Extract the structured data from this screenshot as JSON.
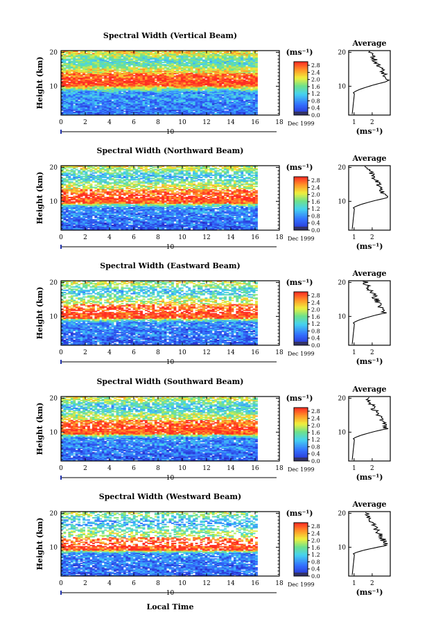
{
  "figure": {
    "xlabel": "Local Time",
    "date_label": "Dec 1999",
    "day_label": "10",
    "ylabel": "Height (km)",
    "colorbar_unit": "(ms⁻¹)",
    "average_title": "Average",
    "average_xlabel": "(ms⁻¹)"
  },
  "chart_data": [
    {
      "type": "heatmap",
      "title": "Spectral Width (Vertical Beam)",
      "xlabel": "Local Time",
      "ylabel": "Height (km)",
      "xlim": [
        0,
        18
      ],
      "xticks": [
        0,
        2,
        4,
        6,
        8,
        10,
        12,
        14,
        16,
        18
      ],
      "data_xrange": [
        0,
        16.2
      ],
      "ylim": [
        1.5,
        20.5
      ],
      "yticks": [
        10,
        20
      ],
      "colorbar": {
        "unit": "(ms⁻¹)",
        "ticks": [
          0.0,
          0.4,
          0.8,
          1.2,
          1.6,
          2.0,
          2.4,
          2.8
        ],
        "range": [
          0,
          3.0
        ]
      },
      "profile": {
        "title": "Average",
        "xlabel": "(ms⁻¹)",
        "xticks": [
          1,
          2
        ],
        "xlim": [
          0.7,
          3.0
        ],
        "ylim": [
          1.5,
          20.5
        ],
        "yticks": [
          10,
          20
        ],
        "peak_height": 11.5,
        "peak_value": 2.9
      },
      "layers": {
        "low_km": [
          2,
          8
        ],
        "low_value": 0.6,
        "peak_km": 11.5,
        "peak_value": 3.0,
        "upper_value": 1.8,
        "gap_fraction": 0.03
      }
    },
    {
      "type": "heatmap",
      "title": "Spectral Width (Northward Beam)",
      "xlabel": "Local Time",
      "ylabel": "Height (km)",
      "xlim": [
        0,
        18
      ],
      "xticks": [
        0,
        2,
        4,
        6,
        8,
        10,
        12,
        14,
        16,
        18
      ],
      "data_xrange": [
        0,
        16.2
      ],
      "ylim": [
        1.5,
        20.5
      ],
      "yticks": [
        10,
        20
      ],
      "colorbar": {
        "unit": "(ms⁻¹)",
        "ticks": [
          0.0,
          0.4,
          0.8,
          1.2,
          1.6,
          2.0,
          2.4,
          2.8
        ],
        "range": [
          0,
          3.0
        ]
      },
      "profile": {
        "title": "Average",
        "xlabel": "(ms⁻¹)",
        "xticks": [
          1,
          2
        ],
        "xlim": [
          0.7,
          3.0
        ],
        "ylim": [
          1.5,
          20.5
        ],
        "yticks": [
          10,
          20
        ],
        "peak_height": 11.0,
        "peak_value": 2.8
      },
      "layers": {
        "low_km": [
          2,
          8
        ],
        "low_value": 0.5,
        "peak_km": 11.0,
        "peak_value": 3.0,
        "upper_value": 1.6,
        "gap_fraction": 0.12
      }
    },
    {
      "type": "heatmap",
      "title": "Spectral Width (Eastward Beam)",
      "xlabel": "Local Time",
      "ylabel": "Height (km)",
      "xlim": [
        0,
        18
      ],
      "xticks": [
        0,
        2,
        4,
        6,
        8,
        10,
        12,
        14,
        16,
        18
      ],
      "data_xrange": [
        0,
        16.2
      ],
      "ylim": [
        1.5,
        20.5
      ],
      "yticks": [
        10,
        20
      ],
      "colorbar": {
        "unit": "(ms⁻¹)",
        "ticks": [
          0.0,
          0.4,
          0.8,
          1.2,
          1.6,
          2.0,
          2.4,
          2.8
        ],
        "range": [
          0,
          3.0
        ]
      },
      "profile": {
        "title": "Average",
        "xlabel": "(ms⁻¹)",
        "xticks": [
          1,
          2
        ],
        "xlim": [
          0.7,
          3.0
        ],
        "ylim": [
          1.5,
          20.5
        ],
        "yticks": [
          10,
          20
        ],
        "peak_height": 11.0,
        "peak_value": 2.7
      },
      "layers": {
        "low_km": [
          2,
          8
        ],
        "low_value": 0.5,
        "peak_km": 11.0,
        "peak_value": 3.0,
        "upper_value": 1.6,
        "gap_fraction": 0.18
      }
    },
    {
      "type": "heatmap",
      "title": "Spectral Width (Southward Beam)",
      "xlabel": "Local Time",
      "ylabel": "Height (km)",
      "xlim": [
        0,
        18
      ],
      "xticks": [
        0,
        2,
        4,
        6,
        8,
        10,
        12,
        14,
        16,
        18
      ],
      "data_xrange": [
        0,
        16.2
      ],
      "ylim": [
        1.5,
        20.5
      ],
      "yticks": [
        10,
        20
      ],
      "colorbar": {
        "unit": "(ms⁻¹)",
        "ticks": [
          0.0,
          0.4,
          0.8,
          1.2,
          1.6,
          2.0,
          2.4,
          2.8
        ],
        "range": [
          0,
          3.0
        ]
      },
      "profile": {
        "title": "Average",
        "xlabel": "(ms⁻¹)",
        "xticks": [
          1,
          2
        ],
        "xlim": [
          0.7,
          3.0
        ],
        "ylim": [
          1.5,
          20.5
        ],
        "yticks": [
          10,
          20
        ],
        "peak_height": 11.0,
        "peak_value": 2.8
      },
      "layers": {
        "low_km": [
          2,
          8
        ],
        "low_value": 0.5,
        "peak_km": 11.0,
        "peak_value": 3.0,
        "upper_value": 1.6,
        "gap_fraction": 0.1
      }
    },
    {
      "type": "heatmap",
      "title": "Spectral Width (Westward Beam)",
      "xlabel": "Local Time",
      "ylabel": "Height (km)",
      "xlim": [
        0,
        18
      ],
      "xticks": [
        0,
        2,
        4,
        6,
        8,
        10,
        12,
        14,
        16,
        18
      ],
      "data_xrange": [
        0,
        16.2
      ],
      "ylim": [
        1.5,
        20.5
      ],
      "yticks": [
        10,
        20
      ],
      "colorbar": {
        "unit": "(ms⁻¹)",
        "ticks": [
          0.0,
          0.4,
          0.8,
          1.2,
          1.6,
          2.0,
          2.4,
          2.8
        ],
        "range": [
          0,
          3.0
        ]
      },
      "profile": {
        "title": "Average",
        "xlabel": "(ms⁻¹)",
        "xticks": [
          1,
          2
        ],
        "xlim": [
          0.7,
          3.0
        ],
        "ylim": [
          1.5,
          20.5
        ],
        "yticks": [
          10,
          20
        ],
        "peak_height": 10.5,
        "peak_value": 2.8
      },
      "layers": {
        "low_km": [
          2,
          8
        ],
        "low_value": 0.5,
        "peak_km": 10.5,
        "peak_value": 3.0,
        "upper_value": 1.4,
        "gap_fraction": 0.22
      }
    }
  ]
}
